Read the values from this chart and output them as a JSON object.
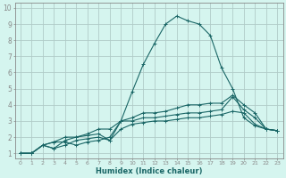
{
  "title": "",
  "xlabel": "Humidex (Indice chaleur)",
  "xlim": [
    -0.5,
    23.5
  ],
  "ylim": [
    0.7,
    10.3
  ],
  "xticks": [
    0,
    1,
    2,
    3,
    4,
    5,
    6,
    7,
    8,
    9,
    10,
    11,
    12,
    13,
    14,
    15,
    16,
    17,
    18,
    19,
    20,
    21,
    22,
    23
  ],
  "yticks": [
    1,
    2,
    3,
    4,
    5,
    6,
    7,
    8,
    9,
    10
  ],
  "bg_color": "#d5f5ef",
  "plot_bg_color": "#d5f5ef",
  "grid_color": "#b0ccc8",
  "line_color": "#1a6666",
  "spine_color": "#888888",
  "tick_label_color": "#1a6666",
  "xlabel_color": "#1a6666",
  "lines": [
    {
      "x": [
        0,
        1,
        2,
        3,
        4,
        5,
        6,
        7,
        8,
        9,
        10,
        11,
        12,
        13,
        14,
        15,
        16,
        17,
        18,
        19,
        20,
        21,
        22,
        23
      ],
      "y": [
        1,
        1,
        1.5,
        1.7,
        2.0,
        2.0,
        2.2,
        2.5,
        2.5,
        3.0,
        4.8,
        6.5,
        7.8,
        9.0,
        9.5,
        9.2,
        9.0,
        8.3,
        6.3,
        5.0,
        3.2,
        2.7,
        2.5,
        2.4
      ]
    },
    {
      "x": [
        0,
        1,
        2,
        3,
        4,
        5,
        6,
        7,
        8,
        9,
        10,
        11,
        12,
        13,
        14,
        15,
        16,
        17,
        18,
        19,
        20,
        21,
        22,
        23
      ],
      "y": [
        1,
        1,
        1.5,
        1.7,
        1.7,
        1.5,
        1.7,
        1.8,
        2.0,
        3.0,
        3.2,
        3.5,
        3.5,
        3.6,
        3.8,
        4.0,
        4.0,
        4.1,
        4.1,
        4.6,
        4.0,
        3.5,
        2.5,
        2.4
      ]
    },
    {
      "x": [
        0,
        1,
        2,
        3,
        4,
        5,
        6,
        7,
        8,
        9,
        10,
        11,
        12,
        13,
        14,
        15,
        16,
        17,
        18,
        19,
        20,
        21,
        22,
        23
      ],
      "y": [
        1,
        1,
        1.5,
        1.3,
        1.8,
        2.0,
        2.1,
        2.2,
        1.8,
        3.0,
        3.0,
        3.2,
        3.2,
        3.3,
        3.4,
        3.5,
        3.5,
        3.6,
        3.7,
        4.5,
        3.7,
        3.2,
        2.5,
        2.4
      ]
    },
    {
      "x": [
        0,
        1,
        2,
        3,
        4,
        5,
        6,
        7,
        8,
        9,
        10,
        11,
        12,
        13,
        14,
        15,
        16,
        17,
        18,
        19,
        20,
        21,
        22,
        23
      ],
      "y": [
        1,
        1,
        1.5,
        1.3,
        1.5,
        1.8,
        1.9,
        2.0,
        1.8,
        2.5,
        2.8,
        2.9,
        3.0,
        3.0,
        3.1,
        3.2,
        3.2,
        3.3,
        3.4,
        3.6,
        3.5,
        2.8,
        2.5,
        2.4
      ]
    }
  ]
}
